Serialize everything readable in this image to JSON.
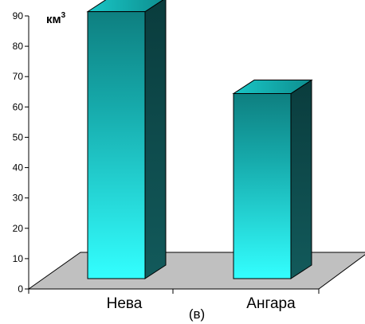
{
  "chart_data": {
    "type": "bar",
    "categories": [
      "Нева",
      "Ангара"
    ],
    "values": [
      88,
      61
    ],
    "unit": "км",
    "unit_superscript": "3",
    "ylim": [
      0,
      90
    ],
    "yticks": [
      "0",
      "10",
      "20",
      "30",
      "40",
      "50",
      "60",
      "70",
      "80",
      "90"
    ],
    "caption": "(в)",
    "grid": false,
    "legend": "none",
    "bar_colors": {
      "front_top": "#0e8a8a",
      "front_bottom": "#33ffff",
      "top_face": "#1bbcbc",
      "side_face": "#0f4a4a"
    },
    "floor_color": "#c0c0c0"
  }
}
